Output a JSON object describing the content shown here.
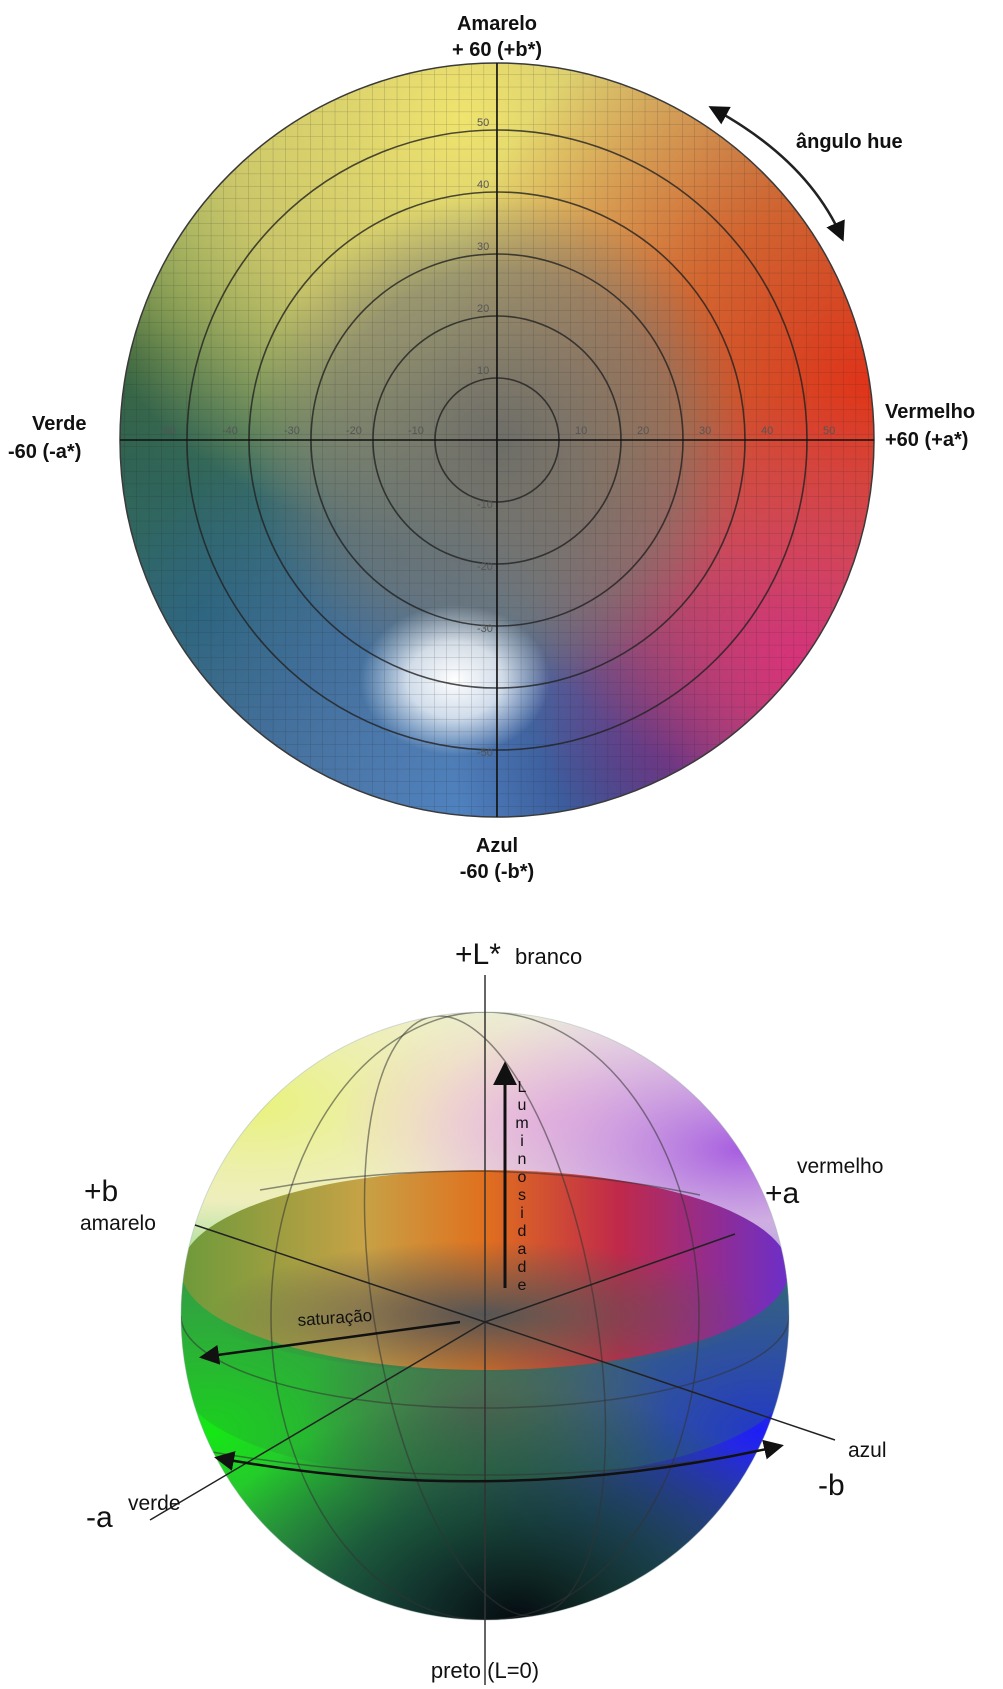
{
  "top_diagram": {
    "yellow": {
      "name": "Amarelo",
      "value": "+ 60 (+b*)"
    },
    "red": {
      "name": "Vermelho",
      "value": "+60  (+a*)"
    },
    "green": {
      "name": "Verde",
      "value": "-60 (-a*)"
    },
    "blue": {
      "name": "Azul",
      "value": "-60 (-b*)"
    },
    "hue_label": "ângulo hue",
    "x_ticks": [
      "-50",
      "-40",
      "-30",
      "-20",
      "-10",
      "10",
      "20",
      "30",
      "40",
      "50"
    ],
    "y_ticks_up": [
      "10",
      "20",
      "30",
      "40",
      "50"
    ],
    "y_ticks_down": [
      "-10",
      "-20",
      "-30",
      "-50"
    ]
  },
  "bottom_diagram": {
    "l_plus": "+L*",
    "white": "branco",
    "black": "preto (L=0)",
    "lightness_letters": [
      "L",
      "u",
      "m",
      "i",
      "n",
      "o",
      "s",
      "i",
      "d",
      "a",
      "d",
      "e"
    ],
    "saturation": "saturação",
    "b_plus": "+b",
    "yellow": "amarelo",
    "a_plus": "+a",
    "red": "vermelho",
    "a_minus": "-a",
    "green": "verde",
    "b_minus": "-b",
    "blue": "azul"
  },
  "colors": {
    "yellow": "#efe072",
    "red": "#df3a1c",
    "green": "#2c6a3c",
    "blue": "#3f6fb0",
    "magenta": "#d23c80",
    "grid": "#3a3a3a"
  }
}
